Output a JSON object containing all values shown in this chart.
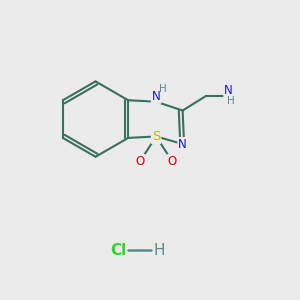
{
  "background_color": "#ebebeb",
  "bond_color": "#3a7060",
  "bond_width": 1.5,
  "S_color": "#c8b800",
  "N_color": "#1a1acc",
  "O_color": "#cc0000",
  "H_color": "#5a8a8a",
  "Cl_color": "#22dd22",
  "NH2_N_color": "#1a1acc",
  "NH2_H_color": "#5a8a8a",
  "label_fontsize": 8.5,
  "hcl_fontsize": 11,
  "fig_width": 3.0,
  "fig_height": 3.0,
  "dpi": 100,
  "xlim": [
    0,
    10
  ],
  "ylim": [
    0,
    10
  ]
}
